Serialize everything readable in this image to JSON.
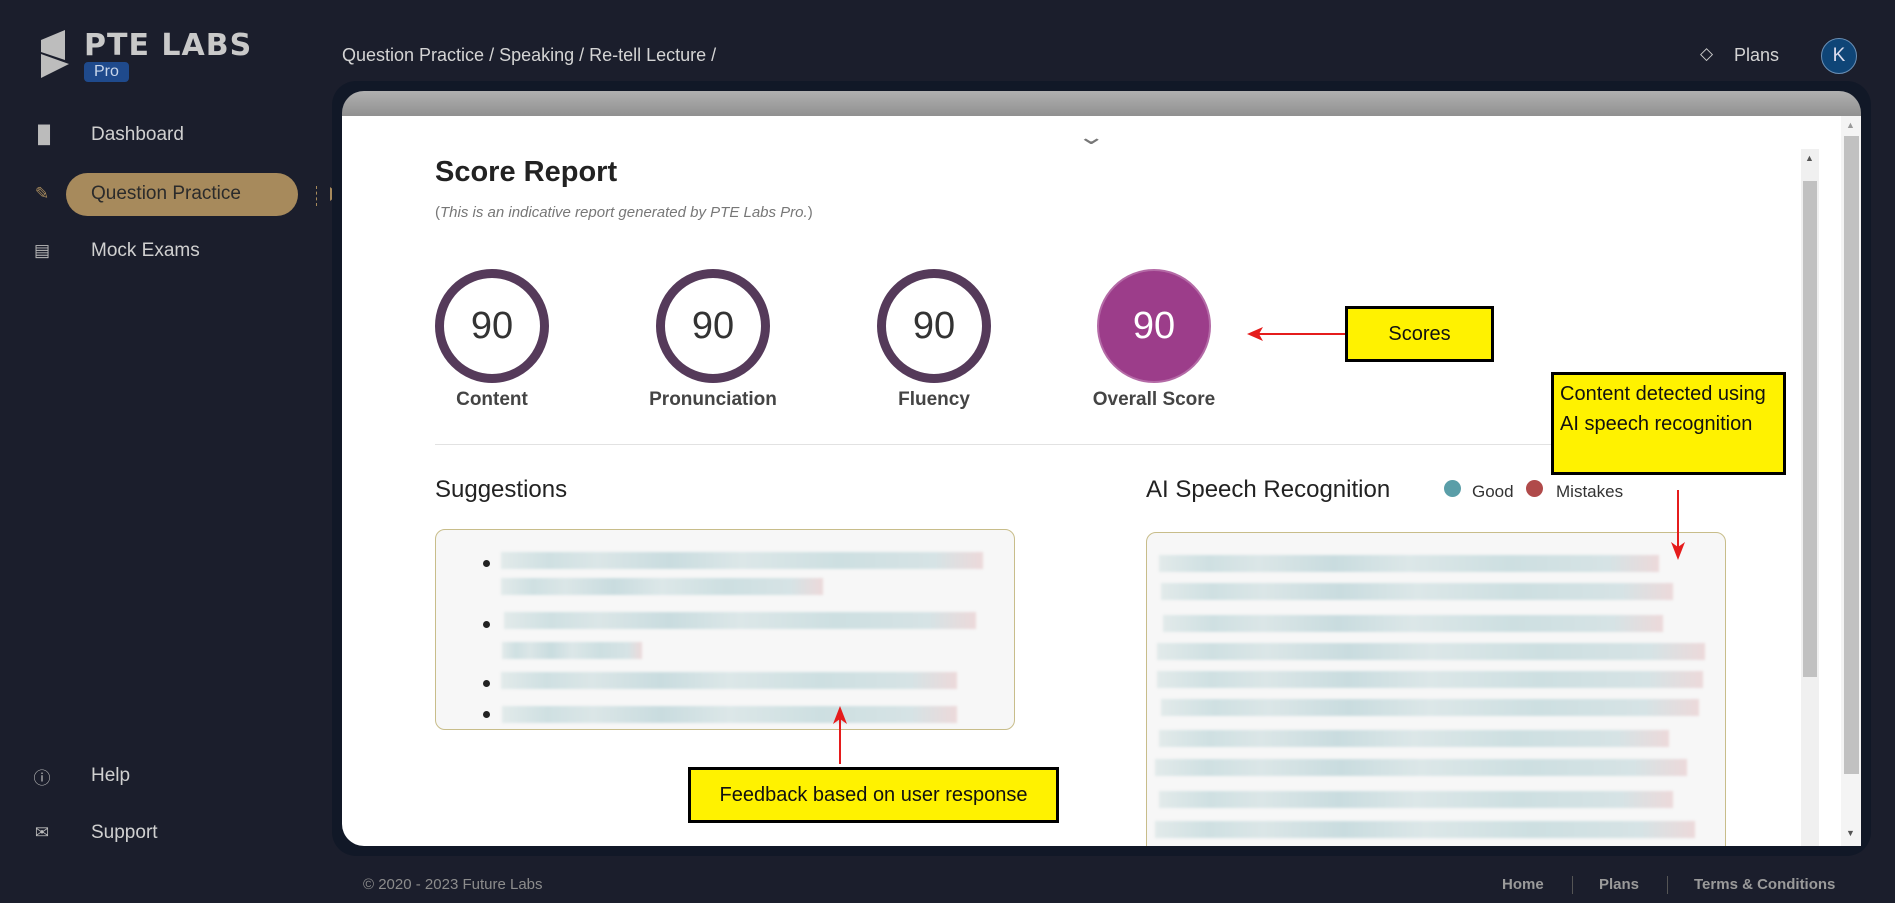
{
  "brand": {
    "name": "PTE LABS",
    "badge": "Pro"
  },
  "sidebar": {
    "items": [
      {
        "label": "Dashboard",
        "icon": "bar-chart-icon"
      },
      {
        "label": "Question Practice",
        "icon": "edit-icon",
        "active": true
      },
      {
        "label": "Mock Exams",
        "icon": "clipboard-icon"
      }
    ],
    "bottom": [
      {
        "label": "Help",
        "icon": "help-icon"
      },
      {
        "label": "Support",
        "icon": "support-icon"
      }
    ]
  },
  "header": {
    "breadcrumb": "Question Practice / Speaking / Re-tell Lecture /",
    "plans": "Plans",
    "avatar": "K"
  },
  "report": {
    "title": "Score Report",
    "subtitle_open": "(",
    "subtitle": "This is an indicative report generated by PTE Labs Pro.",
    "subtitle_close": ")",
    "scores": [
      {
        "label": "Content",
        "value": "90"
      },
      {
        "label": "Pronunciation",
        "value": "90"
      },
      {
        "label": "Fluency",
        "value": "90"
      },
      {
        "label": "Overall Score",
        "value": "90"
      }
    ],
    "suggestions_title": "Suggestions",
    "asr_title": "AI Speech Recognition",
    "legend": [
      {
        "label": "Good",
        "color": "#5a9ea8"
      },
      {
        "label": "Mistakes",
        "color": "#b04a4a"
      }
    ]
  },
  "annotations": {
    "scores": "Scores",
    "content": "Content detected using AI speech recognition",
    "feedback": "Feedback based on user response"
  },
  "footer": {
    "copyright": "© 2020 - 2023 Future Labs",
    "links": [
      "Home",
      "Plans",
      "Terms & Conditions"
    ]
  }
}
